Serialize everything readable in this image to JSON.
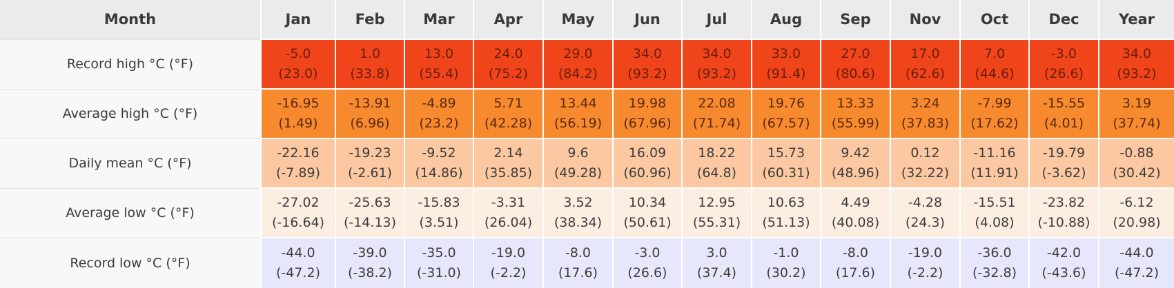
{
  "header": {
    "month_label": "Month",
    "months": [
      "Jan",
      "Feb",
      "Mar",
      "Apr",
      "May",
      "Jun",
      "Jul",
      "Aug",
      "Sep",
      "Nov",
      "Oct",
      "Dec",
      "Year"
    ]
  },
  "rows": [
    {
      "label": "Record high °C (°F)",
      "color": "#f0441a",
      "c": [
        "-5.0",
        "1.0",
        "13.0",
        "24.0",
        "29.0",
        "34.0",
        "34.0",
        "33.0",
        "27.0",
        "17.0",
        "7.0",
        "-3.0",
        "34.0"
      ],
      "f": [
        "(23.0)",
        "(33.8)",
        "(55.4)",
        "(75.2)",
        "(84.2)",
        "(93.2)",
        "(93.2)",
        "(91.4)",
        "(80.6)",
        "(62.6)",
        "(44.6)",
        "(26.6)",
        "(93.2)"
      ]
    },
    {
      "label": "Average high °C (°F)",
      "color": "#f7892f",
      "c": [
        "-16.95",
        "-13.91",
        "-4.89",
        "5.71",
        "13.44",
        "19.98",
        "22.08",
        "19.76",
        "13.33",
        "3.24",
        "-7.99",
        "-15.55",
        "3.19"
      ],
      "f": [
        "(1.49)",
        "(6.96)",
        "(23.2)",
        "(42.28)",
        "(56.19)",
        "(67.96)",
        "(71.74)",
        "(67.57)",
        "(55.99)",
        "(37.83)",
        "(17.62)",
        "(4.01)",
        "(37.74)"
      ]
    },
    {
      "label": "Daily mean °C (°F)",
      "color": "#fcc8a1",
      "c": [
        "-22.16",
        "-19.23",
        "-9.52",
        "2.14",
        "9.6",
        "16.09",
        "18.22",
        "15.73",
        "9.42",
        "0.12",
        "-11.16",
        "-19.79",
        "-0.88"
      ],
      "f": [
        "(-7.89)",
        "(-2.61)",
        "(14.86)",
        "(35.85)",
        "(49.28)",
        "(60.96)",
        "(64.8)",
        "(60.31)",
        "(48.96)",
        "(32.22)",
        "(11.91)",
        "(-3.62)",
        "(30.42)"
      ]
    },
    {
      "label": "Average low °C (°F)",
      "color": "#fdeee2",
      "c": [
        "-27.02",
        "-25.63",
        "-15.83",
        "-3.31",
        "3.52",
        "10.34",
        "12.95",
        "10.63",
        "4.49",
        "-4.28",
        "-15.51",
        "-23.82",
        "-6.12"
      ],
      "f": [
        "(-16.64)",
        "(-14.13)",
        "(3.51)",
        "(26.04)",
        "(38.34)",
        "(50.61)",
        "(55.31)",
        "(51.13)",
        "(40.08)",
        "(24.3)",
        "(4.08)",
        "(-10.88)",
        "(20.98)"
      ]
    },
    {
      "label": "Record low °C (°F)",
      "color": "#e6e7fb",
      "c": [
        "-44.0",
        "-39.0",
        "-35.0",
        "-19.0",
        "-8.0",
        "-3.0",
        "3.0",
        "-1.0",
        "-8.0",
        "-19.0",
        "-36.0",
        "-42.0",
        "-44.0"
      ],
      "f": [
        "(-47.2)",
        "(-38.2)",
        "(-31.0)",
        "(-2.2)",
        "(17.6)",
        "(26.6)",
        "(37.4)",
        "(30.2)",
        "(17.6)",
        "(-2.2)",
        "(-32.8)",
        "(-43.6)",
        "(-47.2)"
      ]
    }
  ]
}
